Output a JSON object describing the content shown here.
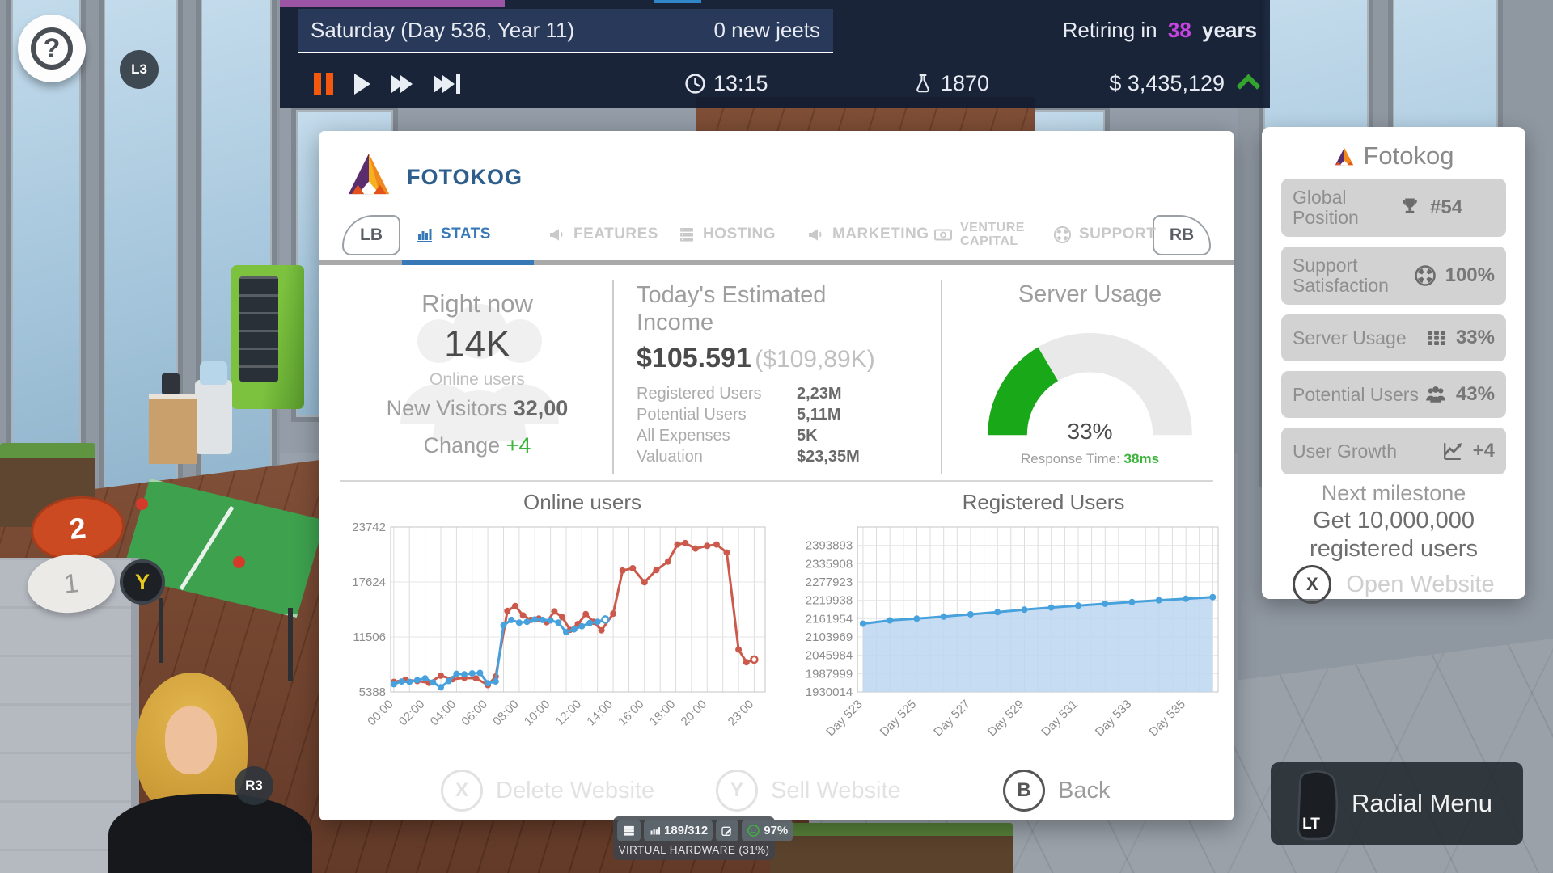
{
  "top_bar": {
    "date_text": "Saturday (Day 536, Year 11)",
    "new_jeets": "0 new jeets",
    "retiring_prefix": "Retiring in",
    "retiring_years": "38",
    "retiring_suffix": "years",
    "time": "13:15",
    "research_points": "1870",
    "money": "$ 3,435,129",
    "accent_purple": "#9c55a5",
    "accent_blue": "#2f86c9",
    "pause_color": "#f4570e",
    "money_trend_color": "#35a42e",
    "retire_years_color": "#c644e0"
  },
  "hud": {
    "help": "?",
    "l3": "L3",
    "r3": "R3",
    "y_button": "Y",
    "marker_2": "2",
    "marker_1": "1"
  },
  "dialog": {
    "title": "FOTOKOG",
    "tabs": {
      "lb": "LB",
      "rb": "RB",
      "items": [
        {
          "label": "STATS",
          "icon": "bar-chart-icon",
          "active": true
        },
        {
          "label": "FEATURES",
          "icon": "megaphone-icon",
          "active": false
        },
        {
          "label": "HOSTING",
          "icon": "server-icon",
          "active": false
        },
        {
          "label": "MARKETING",
          "icon": "megaphone-icon",
          "active": false
        },
        {
          "label_line1": "VENTURE",
          "label_line2": "CAPITAL",
          "icon": "banknote-icon",
          "active": false
        },
        {
          "label": "SUPPORT",
          "icon": "life-ring-icon",
          "active": false
        }
      ],
      "active_color": "#3779b7"
    },
    "right_now": {
      "title": "Right now",
      "value": "14K",
      "subtitle": "Online users",
      "visitors_label": "New Visitors",
      "visitors_value": "32,00",
      "change_label": "Change",
      "change_value": "+4",
      "watermark_icon": "users-group-icon"
    },
    "income": {
      "title": "Today's Estimated Income",
      "value": "$105.591",
      "value_alt": "($109,89K)",
      "rows": [
        {
          "label": "Registered Users",
          "value": "2,23M"
        },
        {
          "label": "Potential Users",
          "value": "5,11M"
        },
        {
          "label": "All Expenses",
          "value": "5K"
        },
        {
          "label": "Valuation",
          "value": "$23,35M"
        }
      ]
    },
    "server_usage": {
      "title": "Server Usage",
      "percent": "33%",
      "percent_num": 33,
      "gauge_color": "#18a818",
      "gauge_track": "#e9e9e9",
      "response_label": "Response Time:",
      "response_value": "38ms"
    },
    "footer": [
      {
        "key": "X",
        "label": "Delete Website",
        "disabled": true
      },
      {
        "key": "Y",
        "label": "Sell Website",
        "disabled": true
      },
      {
        "key": "B",
        "label": "Back",
        "disabled": false
      }
    ]
  },
  "sidebar": {
    "title": "Fotokog",
    "stats": [
      {
        "label": "Global Position",
        "icon": "trophy-icon",
        "value": "#54"
      },
      {
        "label": "Support Satisfaction",
        "icon": "life-ring-icon",
        "value": "100%"
      },
      {
        "label": "Server Usage",
        "icon": "grid-icon",
        "value": "33%"
      },
      {
        "label": "Potential Users",
        "icon": "users-icon",
        "value": "43%"
      },
      {
        "label": "User Growth",
        "icon": "growth-chart-icon",
        "value": "+4"
      }
    ],
    "milestone_title": "Next milestone",
    "milestone_text": "Get 10,000,000 registered users",
    "open_website": {
      "key": "X",
      "label": "Open Website"
    }
  },
  "hardware": {
    "counter": "189/312",
    "percent": "97%",
    "label": "VIRTUAL HARDWARE (31%)",
    "icons": [
      "server-icon",
      "bar-chart-icon",
      "edit-icon",
      "smiley-icon"
    ]
  },
  "radial": {
    "button_label": "LT",
    "label": "Radial Menu"
  },
  "chart_data": [
    {
      "type": "line",
      "title": "Online users",
      "xlim": [
        -0.2,
        23.7
      ],
      "ylim": [
        5388,
        23742
      ],
      "yticks": [
        23742,
        17624,
        11506,
        5388
      ],
      "xticks": [
        {
          "pos": 0,
          "label": "00:00"
        },
        {
          "pos": 2,
          "label": "02:00"
        },
        {
          "pos": 4,
          "label": "04:00"
        },
        {
          "pos": 6,
          "label": "06:00"
        },
        {
          "pos": 8,
          "label": "08:00"
        },
        {
          "pos": 10,
          "label": "10:00"
        },
        {
          "pos": 12,
          "label": "12:00"
        },
        {
          "pos": 14,
          "label": "14:00"
        },
        {
          "pos": 16,
          "label": "16:00"
        },
        {
          "pos": 18,
          "label": "18:00"
        },
        {
          "pos": 20,
          "label": "20:00"
        },
        {
          "pos": 23,
          "label": "23:00"
        }
      ],
      "grid_x": {
        "start": 0,
        "step": 1,
        "end": 23
      },
      "grid": true,
      "legend": false,
      "series": [
        {
          "name": "previous-day",
          "color": "#cb5a4c",
          "hollow_last": true,
          "x": [
            0,
            0.75,
            1.5,
            2.25,
            3,
            3.75,
            4.5,
            5.25,
            6,
            6.5,
            7.25,
            7.75,
            8.25,
            8.75,
            9.25,
            9.75,
            10.25,
            10.75,
            11.25,
            11.75,
            12.25,
            12.75,
            13.25,
            14,
            14.6,
            15.25,
            16,
            16.75,
            17.5,
            18.1,
            18.6,
            19.25,
            20,
            20.6,
            21.25,
            22,
            22.5,
            23
          ],
          "values": [
            6500,
            6750,
            6600,
            6400,
            7200,
            6800,
            6950,
            6900,
            6150,
            7100,
            14400,
            14950,
            13900,
            13400,
            13550,
            13150,
            14350,
            13700,
            12300,
            12950,
            14050,
            13200,
            12250,
            14100,
            18900,
            19150,
            17600,
            18950,
            19900,
            21800,
            21950,
            21350,
            21650,
            21800,
            20900,
            10100,
            8700,
            9000
          ]
        },
        {
          "name": "today",
          "color": "#47a1dc",
          "hollow_last": true,
          "x": [
            0,
            0.5,
            1,
            1.5,
            2,
            2.5,
            3,
            3.5,
            4,
            4.5,
            5,
            5.5,
            6,
            6.5,
            7,
            7.5,
            8,
            8.5,
            9,
            9.5,
            10,
            10.5,
            11,
            11.5,
            12,
            12.5,
            13,
            13.5
          ],
          "values": [
            6250,
            6550,
            6500,
            6700,
            6900,
            6450,
            5900,
            6600,
            7400,
            7350,
            7450,
            7500,
            6350,
            6550,
            12800,
            13400,
            13100,
            13200,
            13450,
            13400,
            13350,
            13100,
            12050,
            12350,
            12700,
            13050,
            13200,
            13450
          ]
        }
      ]
    },
    {
      "type": "area",
      "title": "Registered Users",
      "xlim": [
        522.8,
        536.2
      ],
      "ylim": [
        1930014,
        2451878
      ],
      "yticks": [
        2393893,
        2335908,
        2277923,
        2219938,
        2161954,
        2103969,
        2045984,
        1987999,
        1930014
      ],
      "xticks": [
        {
          "pos": 523,
          "label": "Day 523"
        },
        {
          "pos": 525,
          "label": "Day 525"
        },
        {
          "pos": 527,
          "label": "Day 527"
        },
        {
          "pos": 529,
          "label": "Day 529"
        },
        {
          "pos": 531,
          "label": "Day 531"
        },
        {
          "pos": 533,
          "label": "Day 533"
        },
        {
          "pos": 535,
          "label": "Day 535"
        }
      ],
      "grid_x": {
        "start": 523,
        "step": 0.5,
        "end": 536
      },
      "grid": true,
      "legend": false,
      "series": [
        {
          "name": "registered-users",
          "color": "#47a1dc",
          "fill": "#bcd6f0",
          "hollow_last": false,
          "x": [
            523,
            524,
            525,
            526,
            527,
            528,
            529,
            530,
            531,
            532,
            533,
            534,
            535,
            536
          ],
          "values": [
            2146000,
            2156500,
            2162000,
            2168500,
            2175500,
            2182500,
            2190500,
            2197000,
            2203000,
            2209000,
            2214500,
            2220000,
            2225000,
            2230000
          ]
        }
      ]
    }
  ]
}
